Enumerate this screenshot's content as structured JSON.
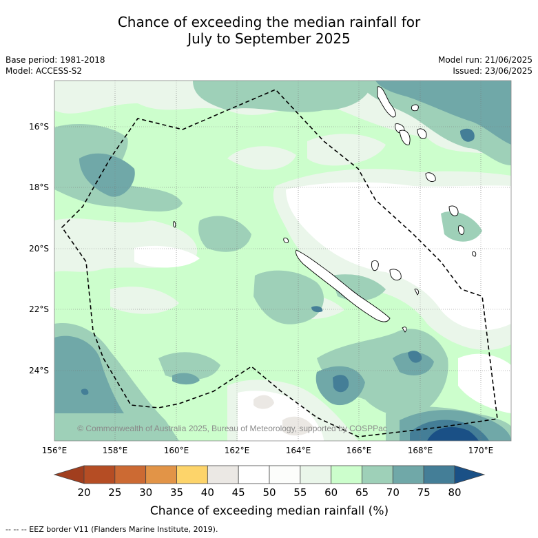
{
  "title": {
    "line1": "Chance of exceeding the median rainfall for",
    "line2": "July to September 2025"
  },
  "info": {
    "base_period": "Base period: 1981-2018",
    "model": "Model: ACCESS-S2",
    "model_run": "Model run: 21/06/2025",
    "issued": "Issued: 23/06/2025"
  },
  "map": {
    "lat_labels": [
      "16°S",
      "18°S",
      "20°S",
      "22°S",
      "24°S"
    ],
    "lon_labels": [
      "156°E",
      "158°E",
      "160°E",
      "162°E",
      "164°E",
      "166°E",
      "168°E",
      "170°E"
    ],
    "credit": "© Commonwealth of Australia 2025, Bureau of Meteorology, supported by COSPPac"
  },
  "colorbar": {
    "ticks": [
      "20",
      "25",
      "30",
      "35",
      "40",
      "45",
      "50",
      "55",
      "60",
      "65",
      "70",
      "75",
      "80"
    ],
    "colors": [
      "#a13e1e",
      "#b54d24",
      "#cc6a33",
      "#e29447",
      "#fdd46a",
      "#ebe8e4",
      "#ffffff",
      "#fcfdfb",
      "#eaf6ea",
      "#ccfecc",
      "#9ed0b8",
      "#70a8a8",
      "#447e97",
      "#1a5086"
    ],
    "label": "Chance of exceeding median rainfall (%)"
  },
  "footer": "--  --  -- EEZ border V11 (Flanders Marine Institute, 2019)."
}
